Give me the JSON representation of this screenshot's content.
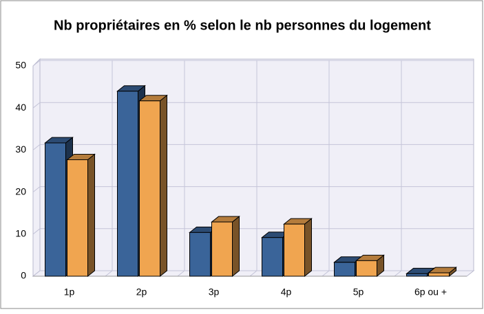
{
  "chart_data": {
    "type": "bar3d",
    "title": "Nb propriétaires en % selon le nb personnes du logement",
    "categories": [
      "1p",
      "2p",
      "3p",
      "4p",
      "5p",
      "6p ou +"
    ],
    "series": [
      {
        "color": "#3a6499",
        "values": [
          31.7,
          44,
          10.4,
          9.2,
          3.3,
          0.6
        ]
      },
      {
        "color": "#f0a550",
        "values": [
          27.7,
          41.7,
          12.9,
          12.4,
          3.7,
          0.8
        ]
      }
    ],
    "ylim": [
      0,
      50
    ],
    "yticks": [
      0,
      10,
      20,
      30,
      40,
      50
    ],
    "grid": true
  }
}
